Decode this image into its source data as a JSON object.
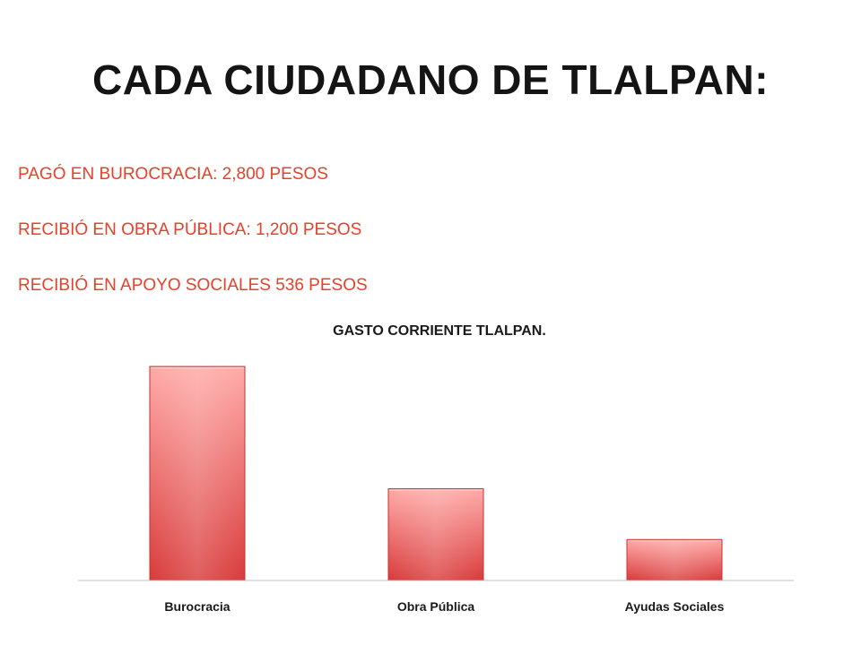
{
  "title": "CADA CIUDADANO DE TLALPAN:",
  "facts": [
    "PAGÓ EN BUROCRACIA: 2,800 PESOS",
    "RECIBIÓ EN OBRA PÚBLICA: 1,200 PESOS",
    "RECIBIÓ EN APOYO SOCIALES 536 PESOS"
  ],
  "colors": {
    "accent_text": "#e8402a",
    "bar_top": "#ffaaa8",
    "bar_bottom": "#d93b3b",
    "bar_edge": "#c63333"
  },
  "chart_data": {
    "type": "bar",
    "title": "GASTO CORRIENTE TLALPAN.",
    "categories": [
      "Burocracia",
      "Obra Pública",
      "Ayudas Sociales"
    ],
    "values": [
      2800,
      1200,
      536
    ],
    "xlabel": "",
    "ylabel": "",
    "ylim": [
      0,
      3000
    ],
    "grid": false,
    "legend": "none"
  }
}
